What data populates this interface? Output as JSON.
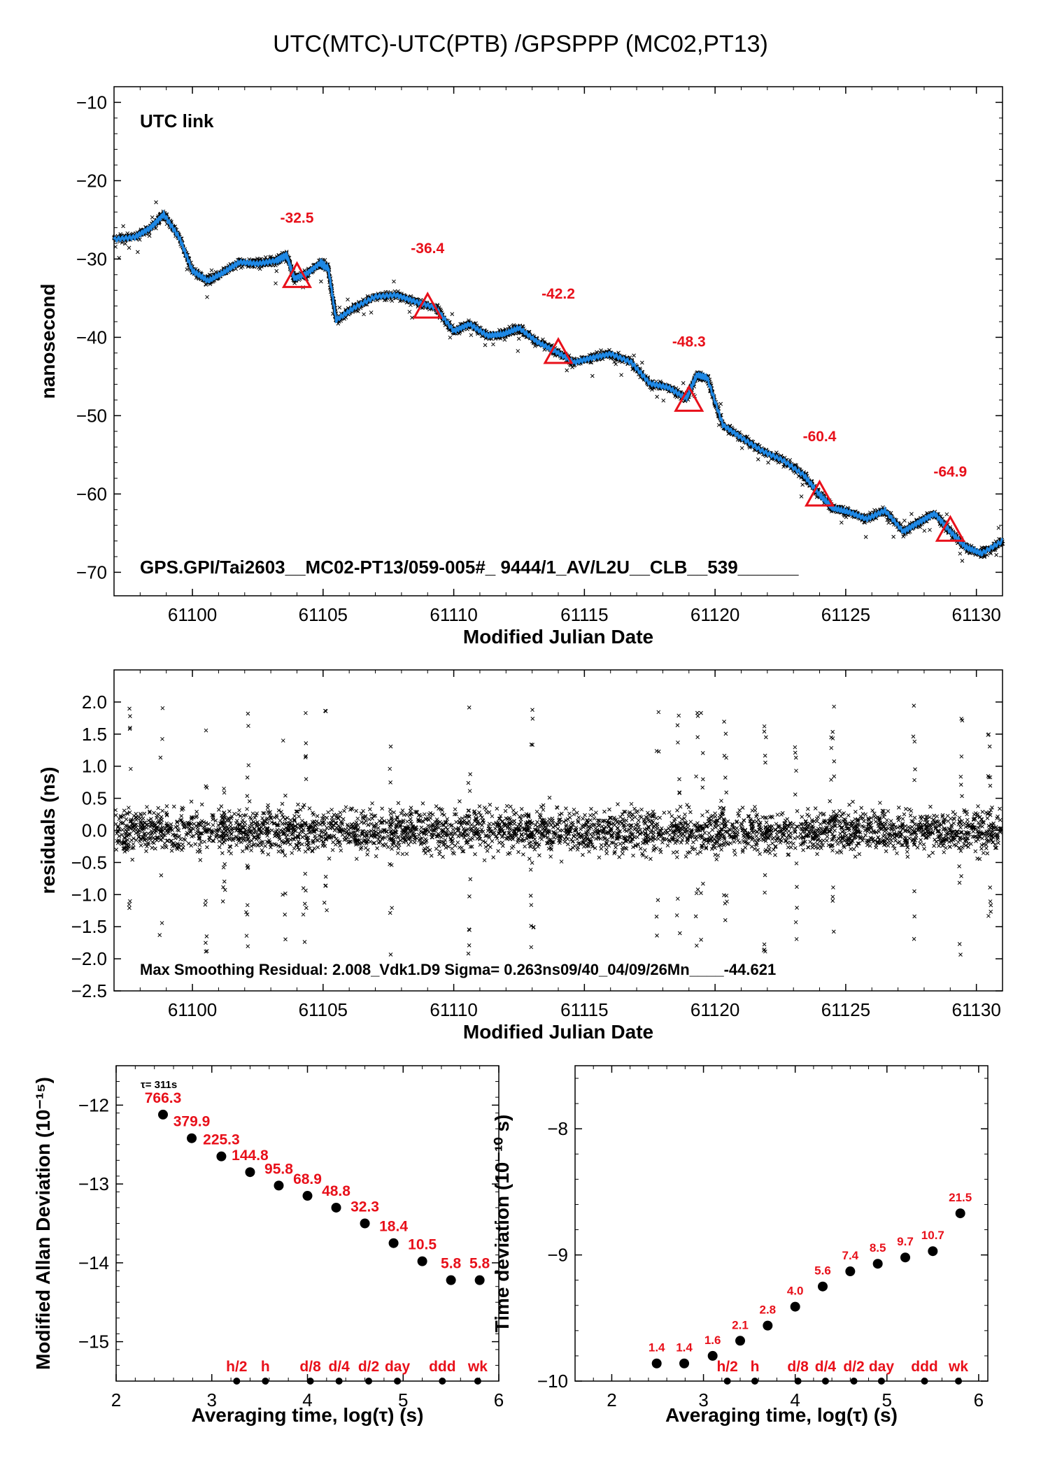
{
  "page": {
    "title": "UTC(MTC)-UTC(PTB)  /GPSPPP  (MC02,PT13)"
  },
  "colors": {
    "trace": "#1e88e5",
    "raw": "#000000",
    "marker": "#e8101a",
    "link_label": "#6b8e23"
  },
  "chart_data": [
    {
      "id": "timeseries",
      "type": "line",
      "title": "UTC(MTC)-UTC(PTB)  /GPSPPP  (MC02,PT13)",
      "xlabel": "Modified Julian Date",
      "ylabel": "nanosecond",
      "xlim": [
        61097,
        61131
      ],
      "ylim": [
        -73,
        -8
      ],
      "xticks": [
        "61100",
        "61105",
        "61110",
        "61115",
        "61120",
        "61125",
        "61130"
      ],
      "yticks": [
        "−10",
        "−20",
        "−30",
        "−40",
        "−50",
        "−60",
        "−70"
      ],
      "link_label": "UTC link",
      "info": "GPS.GPI/Tai2603__MC02-PT13/059-005#_  9444/1_AV/L2U__CLB__539______",
      "series": [
        {
          "name": "",
          "x": [
            61097,
            61097.8,
            61098.4,
            61098.9,
            61099.5,
            61100,
            61100.6,
            61101.2,
            61101.8,
            61102.5,
            61103.2,
            61103.6,
            61103.9,
            61104.4,
            61104.9,
            61105.2,
            61105.5,
            61106.2,
            61107,
            61107.8,
            61108.5,
            61109.3,
            61110,
            61110.6,
            61111.3,
            61111.9,
            61112.5,
            61113.2,
            61113.9,
            61114.6,
            61115.3,
            61116,
            61116.8,
            61117.5,
            61118.2,
            61118.9,
            61119.3,
            61119.7,
            61120.3,
            61121,
            61121.8,
            61122.6,
            61123.4,
            61124,
            61124.5,
            61125.1,
            61125.8,
            61126.5,
            61127.2,
            61127.8,
            61128.4,
            61129,
            61129.6,
            61130.2,
            61131
          ],
          "y": [
            -27.5,
            -27.2,
            -26,
            -24.3,
            -27.3,
            -31.5,
            -32.8,
            -31.7,
            -30.4,
            -30.6,
            -30.2,
            -29.5,
            -32.5,
            -31.8,
            -30.5,
            -31.2,
            -37.8,
            -36.2,
            -34.8,
            -34.6,
            -35.4,
            -36.2,
            -39.2,
            -38.3,
            -39.8,
            -39.6,
            -38.8,
            -40.6,
            -41.8,
            -43.2,
            -42.6,
            -42.1,
            -43.2,
            -45.9,
            -46.4,
            -47.8,
            -44.8,
            -45.2,
            -51.2,
            -52.8,
            -54.5,
            -55.7,
            -57.6,
            -60.1,
            -61.8,
            -62.3,
            -63.2,
            -62.1,
            -64.8,
            -63.6,
            -62.5,
            -64.8,
            -66.8,
            -67.6,
            -66
          ]
        }
      ],
      "markers": [
        {
          "x": 61104,
          "y": -32.5,
          "label": "-32.5"
        },
        {
          "x": 61109,
          "y": -36.4,
          "label": "-36.4"
        },
        {
          "x": 61114,
          "y": -42.2,
          "label": "-42.2"
        },
        {
          "x": 61119,
          "y": -48.3,
          "label": "-48.3"
        },
        {
          "x": 61124,
          "y": -60.4,
          "label": "-60.4"
        },
        {
          "x": 61129,
          "y": -64.9,
          "label": "-64.9"
        }
      ]
    },
    {
      "id": "residuals",
      "type": "scatter",
      "xlabel": "Modified Julian Date",
      "ylabel": "residuals (ns)",
      "xlim": [
        61097,
        61131
      ],
      "ylim": [
        -2.5,
        2.5
      ],
      "xticks": [
        "61100",
        "61105",
        "61110",
        "61115",
        "61120",
        "61125",
        "61130"
      ],
      "yticks": [
        "2.0",
        "1.5",
        "1.0",
        "0.5",
        "0.0",
        "−0.5",
        "−1.0",
        "−1.5",
        "−2.0",
        "−2.5"
      ],
      "info": "Max Smoothing Residual: 2.008_Vdk1.D9  Sigma= 0.263ns09/40_04/09/26Mn____-44.621",
      "sigma_ns": 0.263,
      "max_residual_ns": 2.008,
      "outlier_days": [
        61097.6,
        61098.8,
        61100.5,
        61101.2,
        61102.1,
        61103.5,
        61104.3,
        61105.1,
        61107.6,
        61110.6,
        61113.0,
        61117.8,
        61118.6,
        61119.3,
        61119.5,
        61120.4,
        61121.9,
        61123.1,
        61124.5,
        61127.6,
        61129.4,
        61130.5
      ]
    },
    {
      "id": "mdev",
      "type": "scatter",
      "xlabel": "Averaging time, log(τ) (s)",
      "ylabel": "Modified Allan Deviation (10⁻¹⁵)",
      "xlim": [
        2,
        6
      ],
      "ylim": [
        -15.5,
        -11.5
      ],
      "xticks": [
        "2",
        "3",
        "4",
        "5",
        "6"
      ],
      "yticks": [
        "−12",
        "−13",
        "−14",
        "−15"
      ],
      "tau_note": "τ= 311s",
      "x": [
        2.49,
        2.79,
        3.1,
        3.4,
        3.7,
        4.0,
        4.3,
        4.6,
        4.9,
        5.2,
        5.5,
        5.8
      ],
      "values": [
        -12.12,
        -12.42,
        -12.65,
        -12.85,
        -13.02,
        -13.15,
        -13.3,
        -13.5,
        -13.75,
        -13.98,
        -14.22,
        -14.22
      ],
      "point_labels": [
        "766.3",
        "379.9",
        "225.3",
        "144.8",
        "95.8",
        "68.9",
        "48.8",
        "32.3",
        "18.4",
        "10.5",
        "5.8",
        "5.8"
      ],
      "ref_marks": [
        {
          "x": 3.26,
          "label": "h/2"
        },
        {
          "x": 3.56,
          "label": "h"
        },
        {
          "x": 4.03,
          "label": "d/8"
        },
        {
          "x": 4.33,
          "label": "d/4"
        },
        {
          "x": 4.64,
          "label": "d/2"
        },
        {
          "x": 4.94,
          "label": "day"
        },
        {
          "x": 5.41,
          "label": "ddd"
        },
        {
          "x": 5.78,
          "label": "wk"
        }
      ]
    },
    {
      "id": "tdev",
      "type": "scatter",
      "xlabel": "Averaging time, log(τ) (s)",
      "ylabel": "Time deviation (10⁻¹⁰ s)",
      "xlim": [
        1.6,
        6.1
      ],
      "ylim": [
        -10,
        -7.5
      ],
      "xticks": [
        "2",
        "3",
        "4",
        "5",
        "6"
      ],
      "yticks": [
        "−8",
        "−9",
        "−10"
      ],
      "x": [
        2.49,
        2.79,
        3.1,
        3.4,
        3.7,
        4.0,
        4.3,
        4.6,
        4.9,
        5.2,
        5.5,
        5.8
      ],
      "values": [
        -9.86,
        -9.86,
        -9.8,
        -9.68,
        -9.56,
        -9.41,
        -9.25,
        -9.13,
        -9.07,
        -9.02,
        -8.97,
        -8.67
      ],
      "point_labels": [
        "1.4",
        "1.4",
        "1.6",
        "2.1",
        "2.8",
        "4.0",
        "5.6",
        "7.4",
        "8.5",
        "9.7",
        "10.7",
        "21.5"
      ],
      "ref_marks": [
        {
          "x": 3.26,
          "label": "h/2"
        },
        {
          "x": 3.56,
          "label": "h"
        },
        {
          "x": 4.03,
          "label": "d/8"
        },
        {
          "x": 4.33,
          "label": "d/4"
        },
        {
          "x": 4.64,
          "label": "d/2"
        },
        {
          "x": 4.94,
          "label": "day"
        },
        {
          "x": 5.41,
          "label": "ddd"
        },
        {
          "x": 5.78,
          "label": "wk"
        }
      ]
    }
  ]
}
